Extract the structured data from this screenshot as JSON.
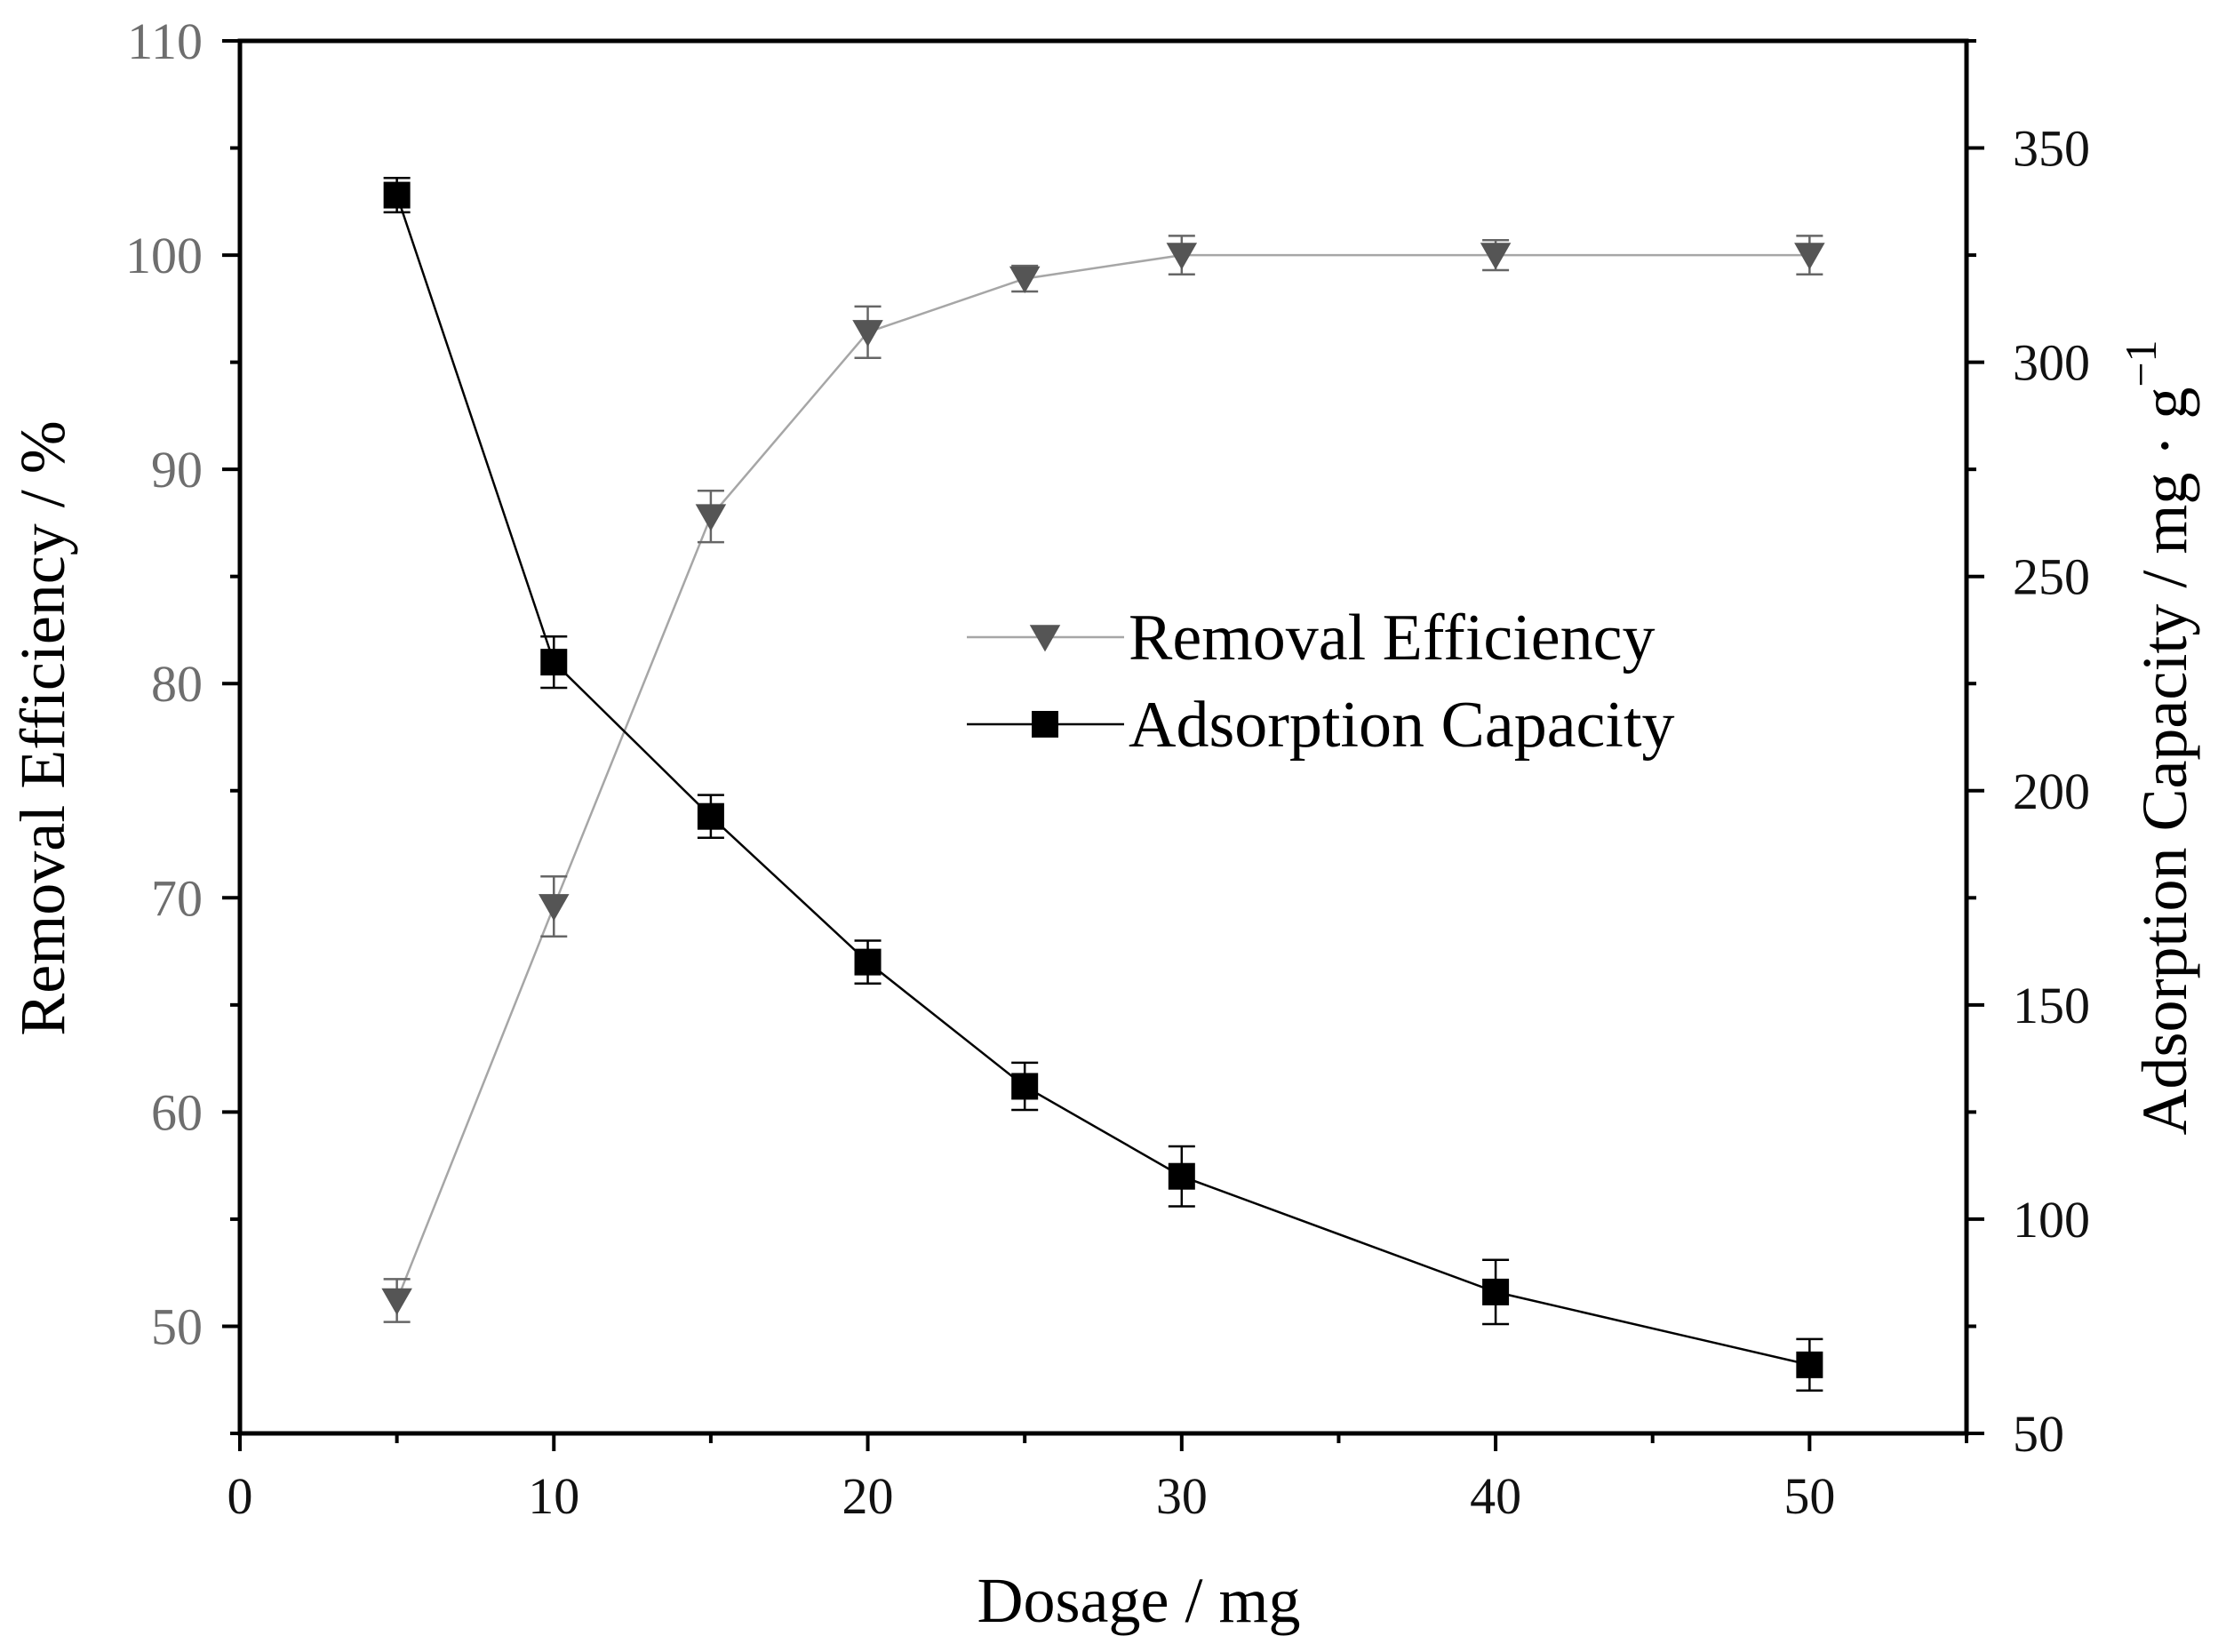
{
  "chart_data": {
    "type": "line",
    "title": "",
    "xlabel": "Dosage / mg",
    "ylabel_left": "Removal Efficiency / %",
    "ylabel_right_base": "Adsorption Capacity / mg · g",
    "ylabel_right_superscript": "−1",
    "xlim": [
      0,
      55
    ],
    "ylim_left": [
      45,
      110
    ],
    "ylim_right": [
      50,
      375
    ],
    "x_ticks": [
      0,
      10,
      20,
      30,
      40,
      50
    ],
    "x_ticks_minor": [
      5,
      15,
      25,
      35,
      45,
      55
    ],
    "y_left_ticks": [
      50,
      60,
      70,
      80,
      90,
      100,
      110
    ],
    "y_left_ticks_minor": [
      45,
      55,
      65,
      75,
      85,
      95,
      105
    ],
    "y_right_ticks": [
      50,
      100,
      150,
      200,
      250,
      300,
      350
    ],
    "y_right_ticks_minor": [
      75,
      125,
      175,
      225,
      275,
      325,
      375
    ],
    "x": [
      5,
      10,
      15,
      20,
      25,
      30,
      40,
      50
    ],
    "series": [
      {
        "name": "Removal Efficiency",
        "axis": "left",
        "marker": "triangle-down",
        "color": "#555555",
        "line_color": "#a6a6a6",
        "values": [
          51.2,
          69.6,
          87.8,
          96.4,
          98.9,
          100.0,
          100.0,
          100.0
        ],
        "errors": [
          1.0,
          1.4,
          1.2,
          1.2,
          0.6,
          0.9,
          0.7,
          0.9
        ]
      },
      {
        "name": "Adsorption Capacity",
        "axis": "right",
        "marker": "square",
        "color": "#000000",
        "line_color": "#000000",
        "values": [
          339,
          230,
          194,
          160,
          131,
          110,
          83,
          66
        ],
        "errors": [
          4,
          6,
          5,
          5,
          5.5,
          7,
          7.5,
          6
        ]
      }
    ],
    "legend_position": "center-right",
    "grid": false
  }
}
